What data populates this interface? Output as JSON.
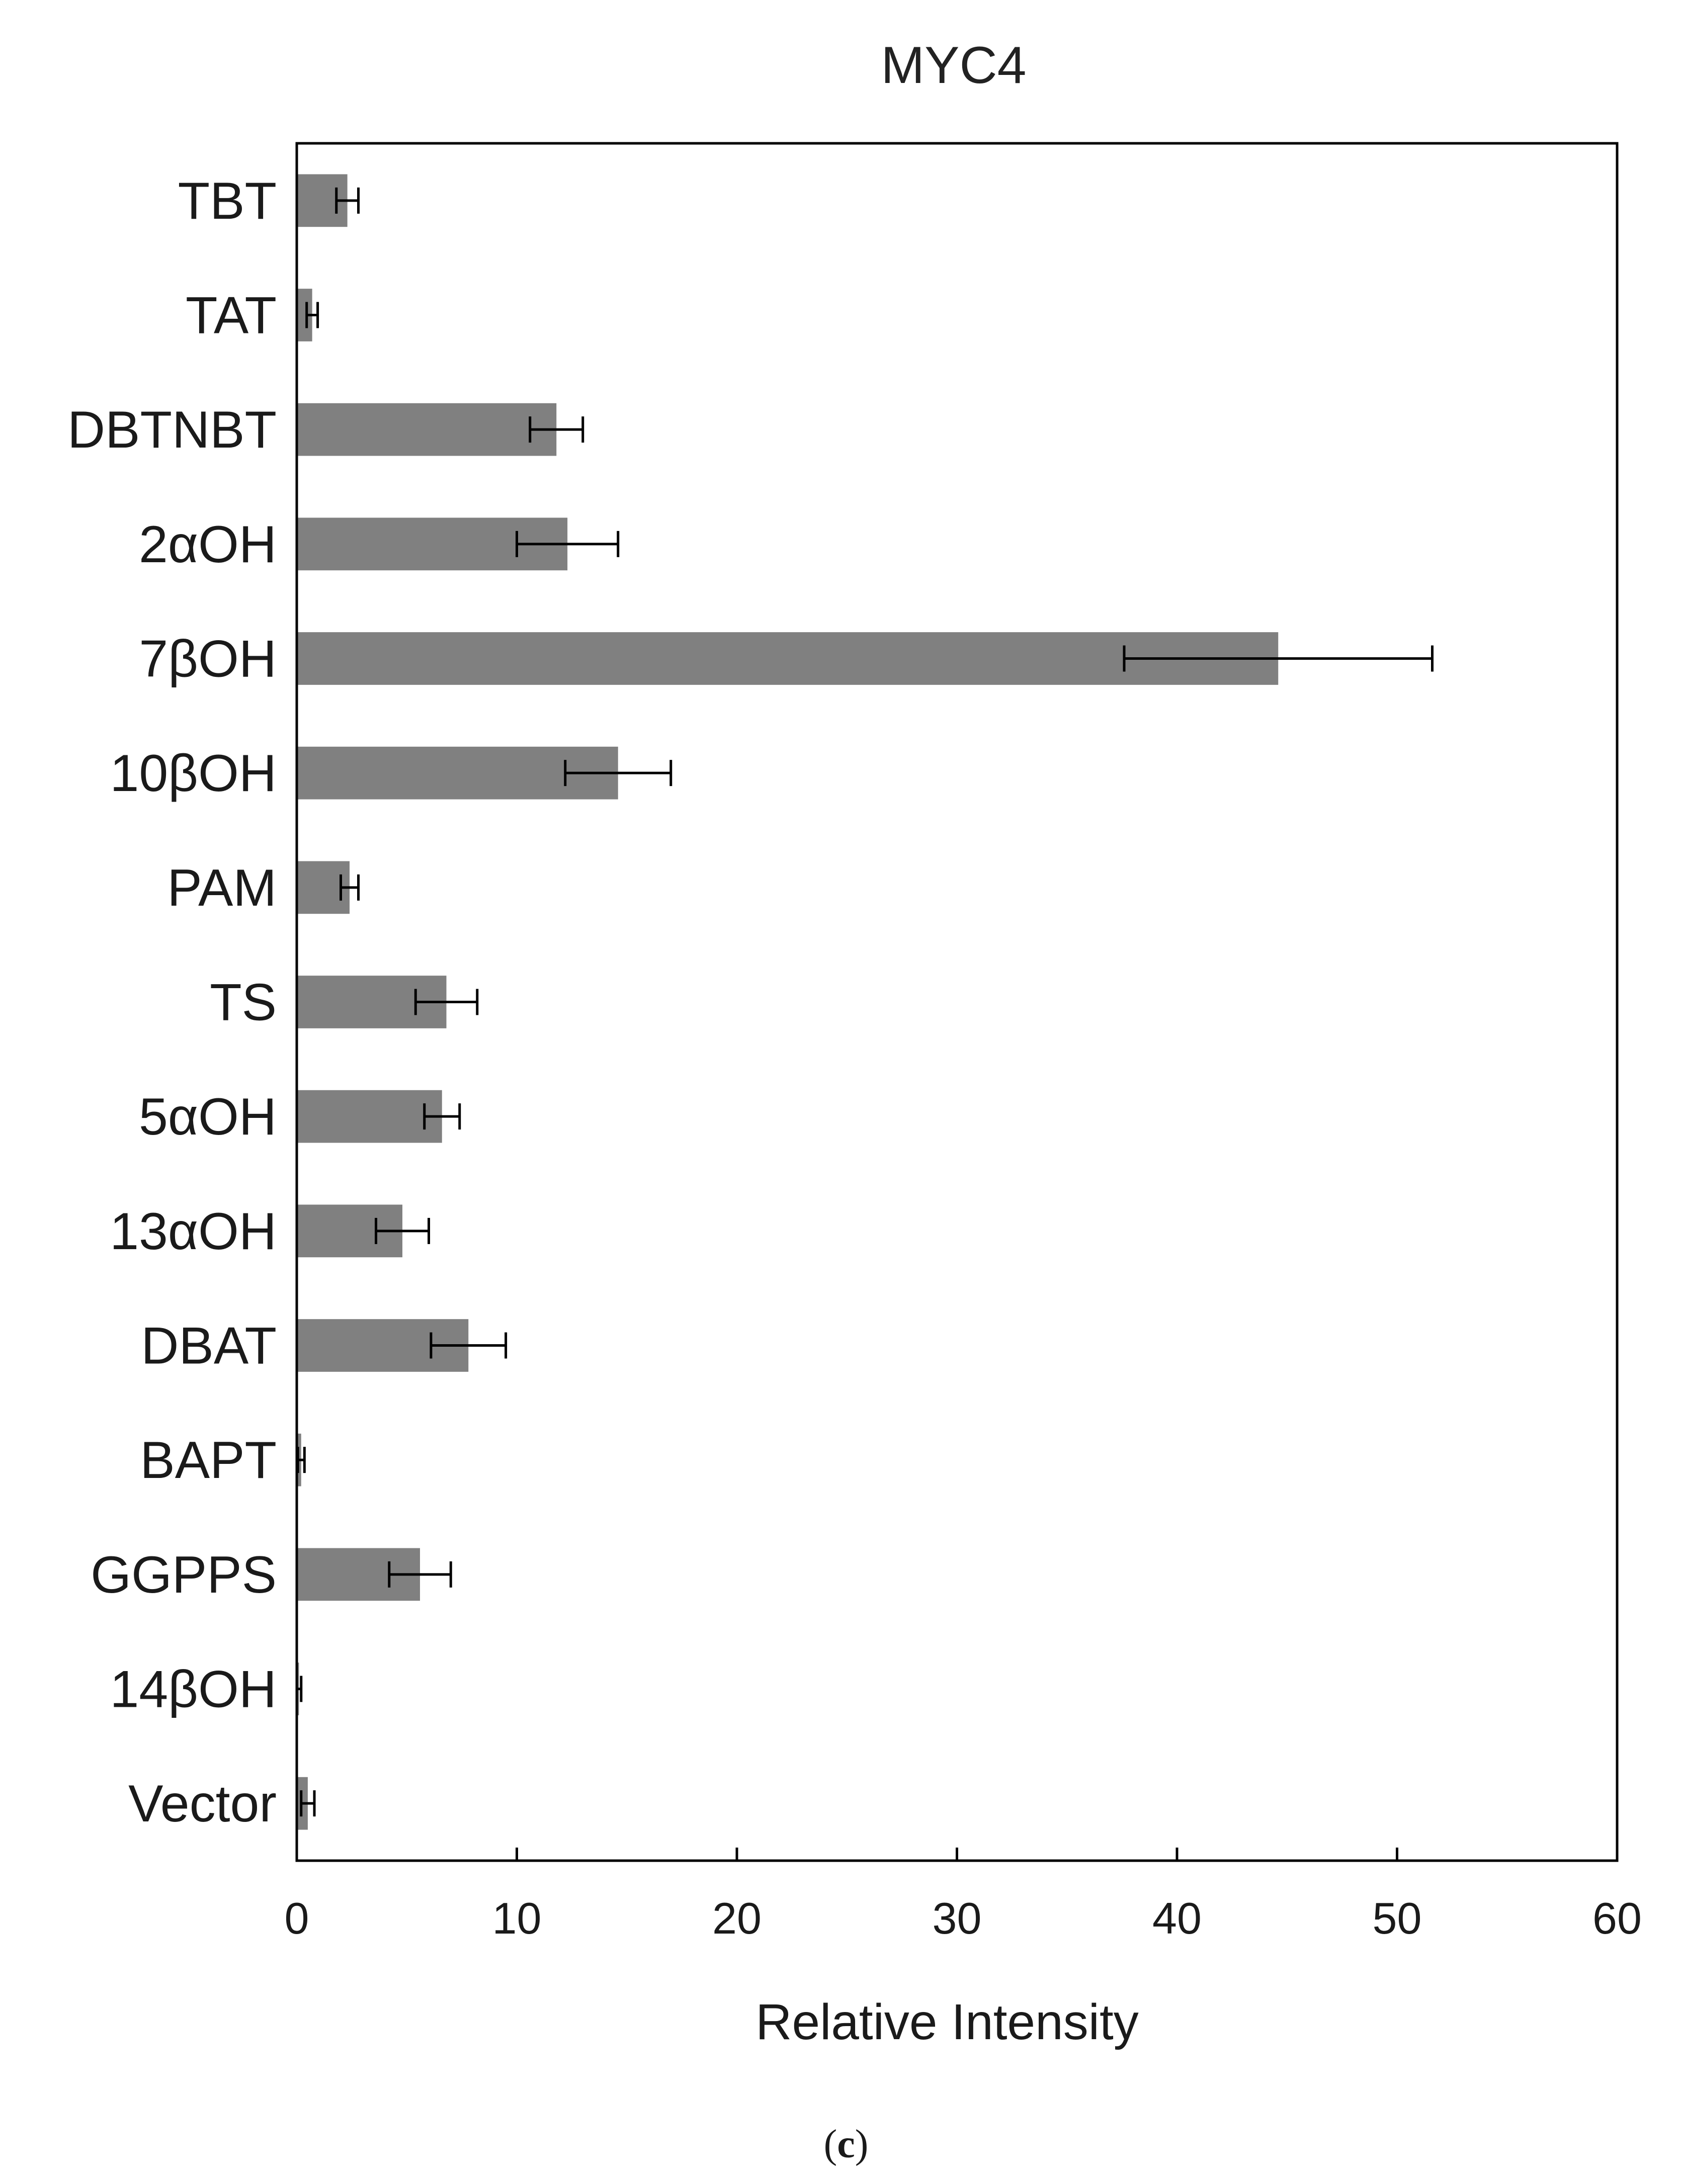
{
  "chart_data": {
    "type": "bar",
    "orientation": "horizontal",
    "title": "MYC4",
    "xlabel": "Relative Intensity",
    "ylabel": "",
    "xlim": [
      0,
      60
    ],
    "xticks": [
      0,
      10,
      20,
      30,
      40,
      50,
      60
    ],
    "categories": [
      "TBT",
      "TAT",
      "DBTNBT",
      "2αOH",
      "7βOH",
      "10βOH",
      "PAM",
      "TS",
      "5αOH",
      "13αOH",
      "DBAT",
      "BAPT",
      "GGPPS",
      "14βOH",
      "Vector"
    ],
    "values": [
      2.3,
      0.7,
      11.8,
      12.3,
      44.6,
      14.6,
      2.4,
      6.8,
      6.6,
      4.8,
      7.8,
      0.2,
      5.6,
      0.1,
      0.5
    ],
    "errors": [
      0.5,
      0.25,
      1.2,
      2.3,
      7.0,
      2.4,
      0.4,
      1.4,
      0.8,
      1.2,
      1.7,
      0.15,
      1.4,
      0.1,
      0.3
    ],
    "bar_color": "#808080",
    "grid": false,
    "legend": "none"
  },
  "panel": {
    "open": "(",
    "letter": "c",
    "close": ")"
  }
}
